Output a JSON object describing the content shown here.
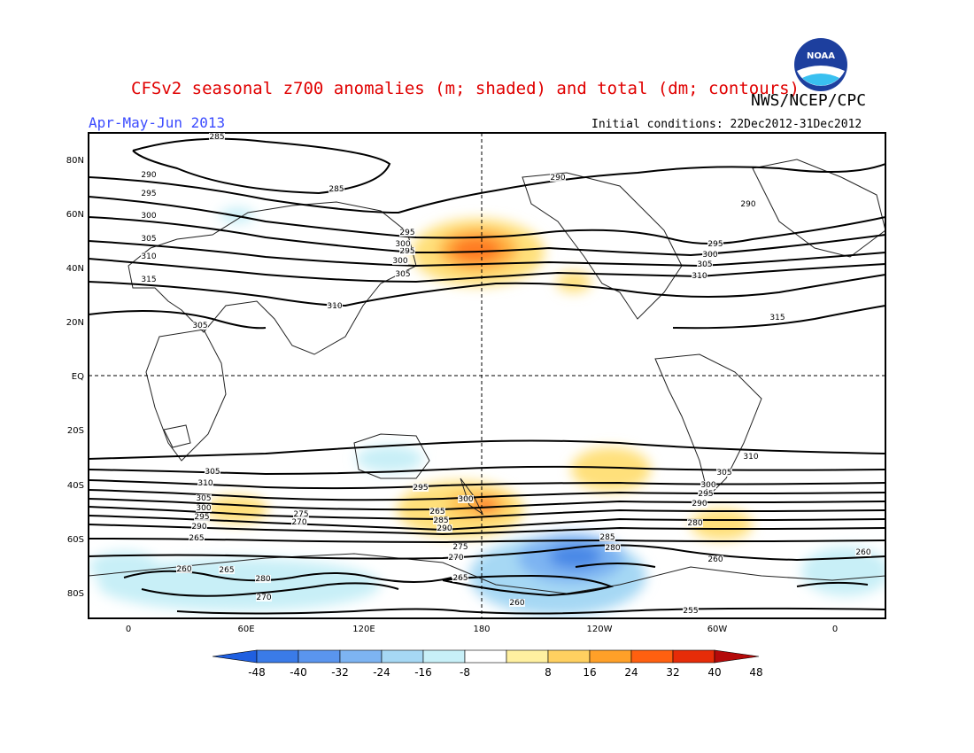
{
  "header": {
    "title": "CFSv2 seasonal z700 anomalies (m; shaded) and total (dm; contours)",
    "organization": "NWS/NCEP/CPC",
    "season": "Apr-May-Jun 2013",
    "initial_conditions": "Initial conditions: 22Dec2012-31Dec2012",
    "logo_text": "NOAA"
  },
  "map": {
    "lat_labels": [
      "80N",
      "60N",
      "40N",
      "20N",
      "EQ",
      "20S",
      "40S",
      "60S",
      "80S"
    ],
    "lon_labels": [
      "0",
      "60E",
      "120E",
      "180",
      "120W",
      "60W",
      "0"
    ],
    "contour_labels": [
      "285",
      "290",
      "295",
      "300",
      "305",
      "310",
      "315",
      "290",
      "295",
      "300",
      "305",
      "310",
      "315",
      "295",
      "300",
      "305",
      "285",
      "290",
      "295",
      "300",
      "305",
      "310",
      "310",
      "305",
      "300",
      "295",
      "290",
      "280",
      "275",
      "270",
      "265",
      "260",
      "265",
      "280",
      "270",
      "265",
      "285",
      "290",
      "295",
      "300",
      "305",
      "310",
      "305",
      "300",
      "295",
      "290",
      "285",
      "280",
      "275",
      "270",
      "265",
      "260",
      "255",
      "260",
      "260",
      "265"
    ]
  },
  "colorbar": {
    "ticks": [
      "-48",
      "-40",
      "-32",
      "-24",
      "-16",
      "-8",
      "8",
      "16",
      "24",
      "32",
      "40",
      "48"
    ],
    "colors": [
      "#1f5fe0",
      "#3a7be8",
      "#5a95ee",
      "#7db4f2",
      "#a6d8f4",
      "#c8f0f8",
      "#ffffff",
      "#fff0a0",
      "#ffd060",
      "#ffa028",
      "#ff6010",
      "#e62c08",
      "#b40a0a"
    ]
  }
}
